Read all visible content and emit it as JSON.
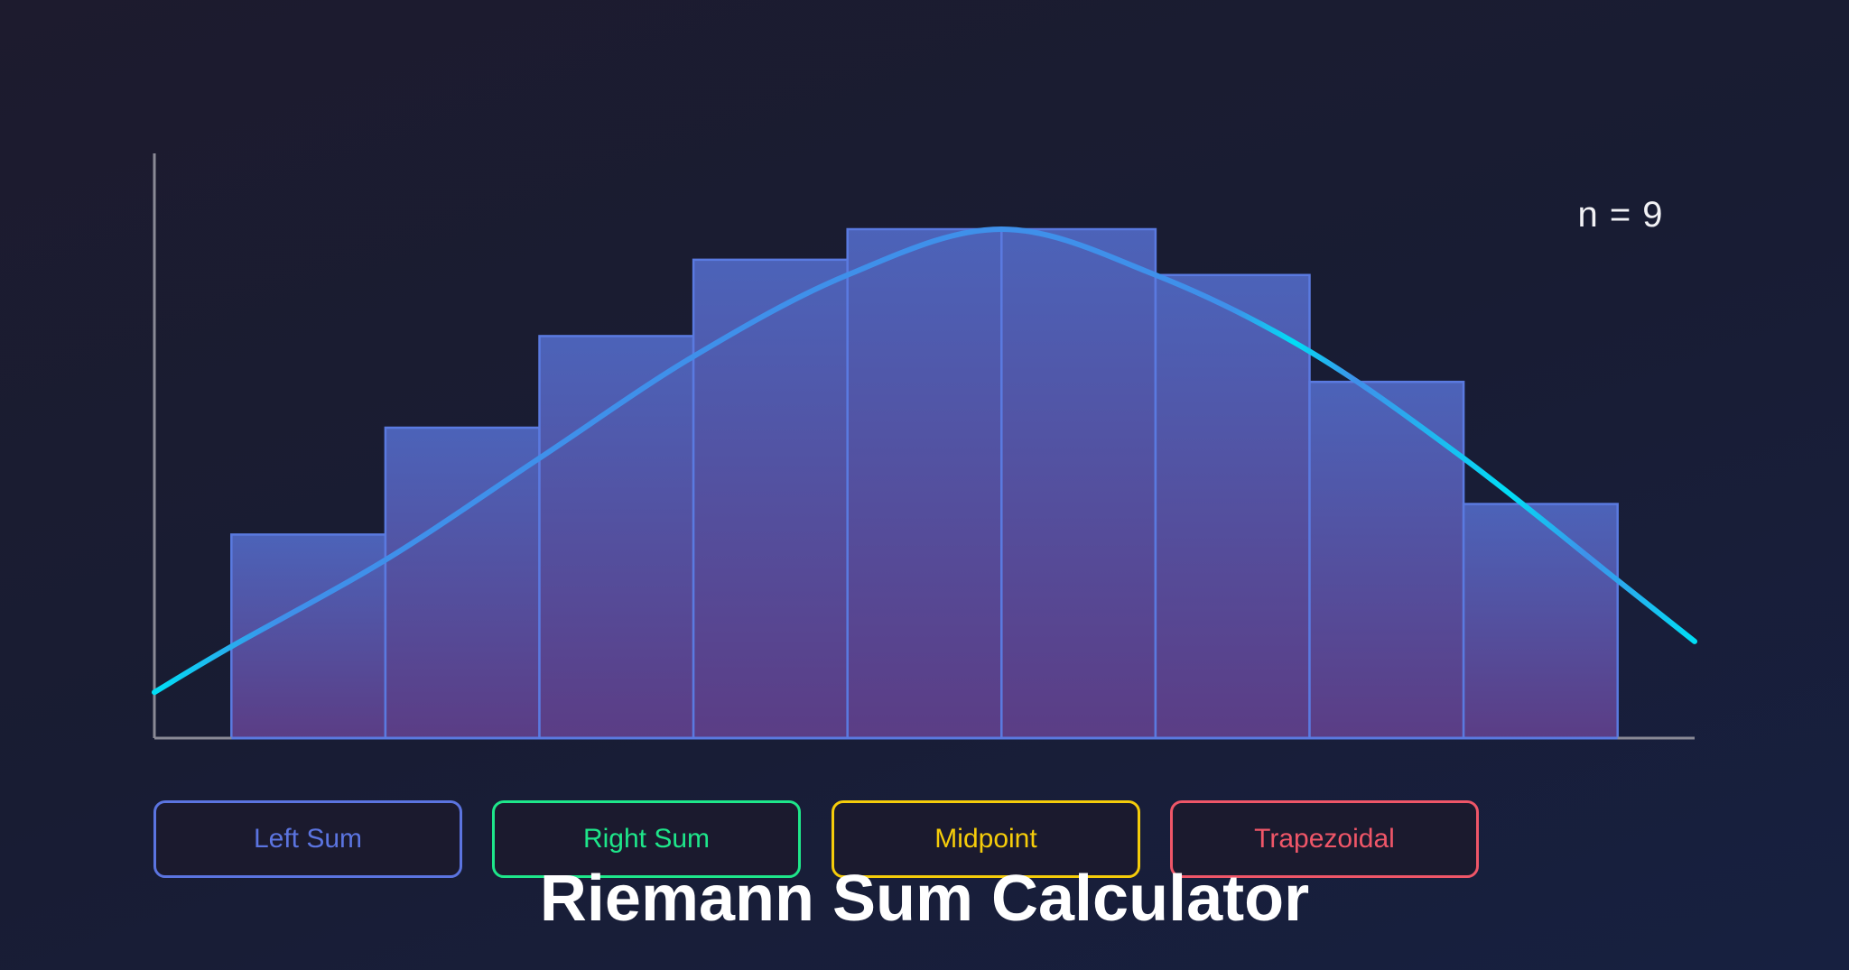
{
  "title": "Riemann Sum Calculator",
  "n_label": "n = 9",
  "buttons": [
    {
      "label": "Left Sum",
      "color": "#5b74e0"
    },
    {
      "label": "Right Sum",
      "color": "#1ee68a"
    },
    {
      "label": "Midpoint",
      "color": "#f5cc0a"
    },
    {
      "label": "Trapezoidal",
      "color": "#ef5668"
    }
  ],
  "colors": {
    "bar_top": "#4c63b9",
    "bar_bottom": "#5b3d85",
    "bar_edge": "#5a7ae0",
    "curve_main": "#3f90ea",
    "curve_accent": "#00def5",
    "axis": "#8a8a96"
  },
  "chart_data": {
    "type": "bar",
    "title": "",
    "xlabel": "",
    "ylabel": "",
    "n": 9,
    "xlim": [
      0,
      10
    ],
    "ylim": [
      0,
      1.15
    ],
    "grid": false,
    "bars": {
      "x_start": [
        0.5,
        1.5,
        2.5,
        3.5,
        4.5,
        5.5,
        6.5,
        7.5,
        8.5
      ],
      "width": 1,
      "values": [
        0.4,
        0.61,
        0.79,
        0.94,
        1.0,
        1.0,
        0.91,
        0.7,
        0.46
      ]
    },
    "curve": {
      "x": [
        0,
        0.5,
        1.5,
        2.5,
        3.5,
        4.5,
        5.5,
        6.5,
        7.5,
        8.5,
        9.5,
        10
      ],
      "y": [
        0.09,
        0.18,
        0.35,
        0.55,
        0.75,
        0.91,
        1.0,
        0.91,
        0.76,
        0.55,
        0.31,
        0.19
      ]
    }
  }
}
